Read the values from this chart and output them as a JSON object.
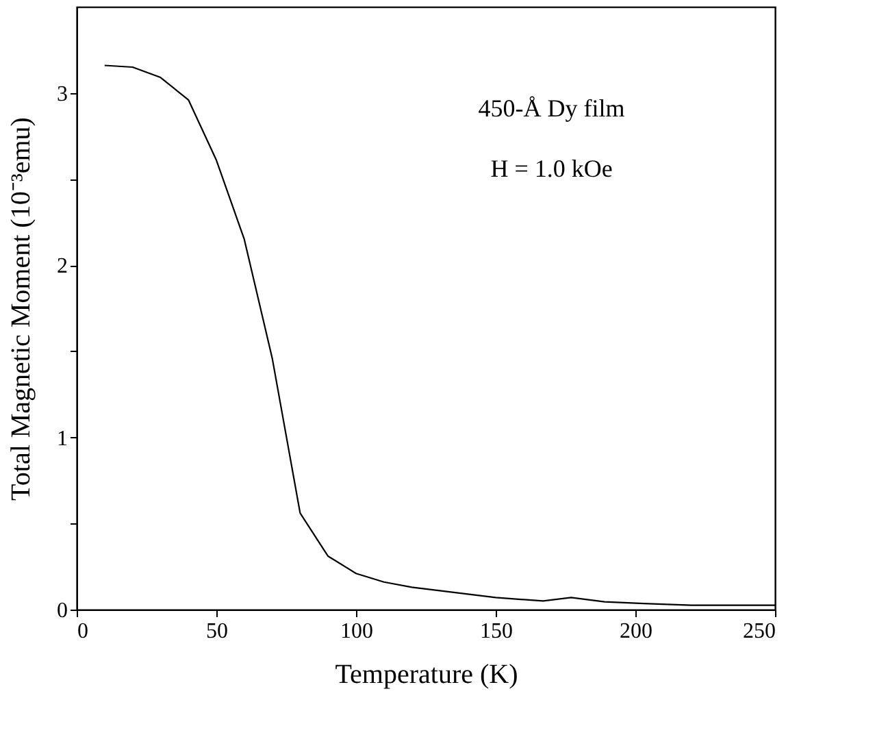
{
  "chart_data": {
    "type": "line",
    "xlabel": "Temperature (K)",
    "ylabel": "Total Magnetic Moment (10⁻³emu)",
    "annotations": [
      "450-Å Dy film",
      "H = 1.0 kOe"
    ],
    "x": [
      10,
      20,
      30,
      40,
      50,
      60,
      70,
      80,
      90,
      100,
      110,
      120,
      130,
      150,
      167,
      177,
      189,
      203,
      220,
      241,
      250
    ],
    "series": [
      {
        "color": "#000000",
        "values": [
          3.16,
          3.15,
          3.09,
          2.96,
          2.61,
          2.15,
          1.46,
          0.56,
          0.31,
          0.21,
          0.16,
          0.13,
          0.11,
          0.07,
          0.05,
          0.07,
          0.045,
          0.035,
          0.025,
          0.025,
          0.025
        ]
      }
    ],
    "xlim": [
      0,
      250
    ],
    "ylim": [
      0,
      3.5
    ],
    "xticks": [
      0,
      50,
      100,
      150,
      200,
      250
    ],
    "yticks": [
      0,
      {
        "value": 0.5,
        "label": null
      },
      1,
      {
        "value": 1.5,
        "label": null
      },
      2,
      {
        "value": 2.5,
        "label": null
      },
      3
    ],
    "grid": false,
    "legend": false,
    "marker": "none",
    "line_style": "solid"
  }
}
